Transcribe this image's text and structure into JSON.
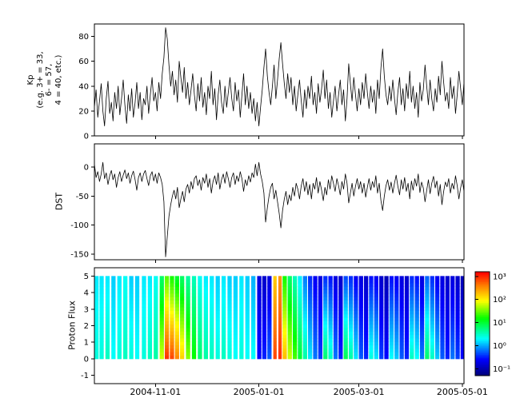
{
  "figure": {
    "background": "#ffffff",
    "axis_color": "#000000",
    "line_color": "#000000"
  },
  "x_axis": {
    "tick_labels": [
      "2004-11-01",
      "2005-01-01",
      "2005-03-01",
      "2005-05-01"
    ],
    "tick_days": [
      36,
      97,
      156,
      217
    ],
    "domain_days": [
      0,
      218
    ]
  },
  "chart_data": [
    {
      "type": "line",
      "panel": "kp",
      "ylabel_lines": [
        "Kp",
        "(e.g. 3+ = 33,",
        "6- = 57,",
        "4 = 40, etc.)"
      ],
      "ylim": [
        0,
        90
      ],
      "yticks": [
        0,
        20,
        40,
        60,
        80
      ],
      "values": [
        23,
        37,
        15,
        28,
        42,
        20,
        8,
        30,
        44,
        18,
        27,
        12,
        35,
        22,
        40,
        17,
        30,
        45,
        25,
        10,
        33,
        20,
        38,
        15,
        27,
        43,
        22,
        35,
        13,
        30,
        25,
        40,
        18,
        33,
        47,
        28,
        35,
        20,
        43,
        30,
        50,
        63,
        87,
        78,
        57,
        40,
        52,
        33,
        45,
        27,
        60,
        47,
        35,
        55,
        30,
        43,
        25,
        37,
        50,
        33,
        20,
        42,
        28,
        47,
        23,
        35,
        17,
        40,
        30,
        52,
        25,
        38,
        13,
        33,
        45,
        27,
        18,
        40,
        23,
        35,
        47,
        30,
        20,
        43,
        28,
        37,
        15,
        33,
        50,
        25,
        40,
        22,
        35,
        18,
        30,
        12,
        27,
        8,
        23,
        37,
        55,
        70,
        48,
        35,
        25,
        40,
        57,
        30,
        45,
        62,
        75,
        58,
        42,
        30,
        50,
        35,
        47,
        25,
        40,
        20,
        33,
        45,
        28,
        15,
        37,
        22,
        40,
        30,
        48,
        25,
        35,
        18,
        42,
        27,
        38,
        53,
        30,
        45,
        22,
        35,
        15,
        28,
        40,
        20,
        33,
        45,
        25,
        37,
        12,
        30,
        58,
        42,
        28,
        47,
        33,
        20,
        38,
        25,
        43,
        30,
        50,
        35,
        22,
        40,
        27,
        37,
        18,
        45,
        30,
        55,
        70,
        48,
        33,
        25,
        40,
        28,
        45,
        30,
        17,
        35,
        47,
        25,
        38,
        20,
        42,
        30,
        52,
        27,
        40,
        22,
        35,
        15,
        43,
        28,
        37,
        57,
        40,
        25,
        45,
        30,
        20,
        38,
        27,
        48,
        33,
        60,
        43,
        28,
        35,
        22,
        47,
        30,
        40,
        18,
        33,
        52,
        38,
        25,
        43
      ]
    },
    {
      "type": "line",
      "panel": "dst",
      "ylabel": "DST",
      "ylim": [
        -160,
        40
      ],
      "yticks": [
        0,
        -50,
        -100,
        -150
      ],
      "values": [
        5,
        -18,
        -8,
        -25,
        -12,
        8,
        -20,
        -10,
        -30,
        -15,
        -6,
        -22,
        -12,
        -35,
        -18,
        -8,
        -25,
        -14,
        -5,
        -20,
        -10,
        -28,
        -15,
        -7,
        -22,
        -40,
        -18,
        -10,
        -25,
        -12,
        -6,
        -20,
        -32,
        -15,
        -8,
        -24,
        -12,
        -28,
        -10,
        -18,
        -30,
        -60,
        -155,
        -120,
        -85,
        -65,
        -50,
        -40,
        -55,
        -35,
        -70,
        -55,
        -42,
        -60,
        -38,
        -30,
        -45,
        -25,
        -38,
        -20,
        -15,
        -32,
        -22,
        -40,
        -18,
        -28,
        -12,
        -35,
        -20,
        -45,
        -25,
        -15,
        -30,
        -10,
        -38,
        -22,
        -12,
        -28,
        -8,
        -20,
        -35,
        -18,
        -10,
        -30,
        -15,
        -25,
        -8,
        -20,
        -42,
        -22,
        -32,
        -15,
        -26,
        -10,
        -18,
        5,
        -15,
        8,
        -12,
        -25,
        -45,
        -95,
        -70,
        -50,
        -35,
        -28,
        -55,
        -40,
        -60,
        -80,
        -105,
        -75,
        -55,
        -42,
        -65,
        -48,
        -58,
        -35,
        -50,
        -28,
        -38,
        -55,
        -32,
        -20,
        -42,
        -25,
        -48,
        -30,
        -55,
        -28,
        -38,
        -18,
        -45,
        -25,
        -40,
        -58,
        -35,
        -48,
        -22,
        -38,
        -15,
        -28,
        -42,
        -20,
        -32,
        -48,
        -25,
        -38,
        -12,
        -28,
        -62,
        -45,
        -28,
        -50,
        -33,
        -20,
        -38,
        -25,
        -45,
        -28,
        -52,
        -35,
        -20,
        -40,
        -25,
        -35,
        -15,
        -45,
        -28,
        -58,
        -75,
        -50,
        -32,
        -22,
        -40,
        -26,
        -45,
        -28,
        -14,
        -33,
        -48,
        -22,
        -38,
        -18,
        -42,
        -28,
        -55,
        -24,
        -40,
        -20,
        -33,
        -12,
        -44,
        -26,
        -36,
        -60,
        -40,
        -22,
        -46,
        -28,
        -16,
        -36,
        -24,
        -50,
        -30,
        -65,
        -42,
        -26,
        -34,
        -20,
        -45,
        -28,
        -38,
        -15,
        -32,
        -55,
        -36,
        -22,
        -42
      ]
    },
    {
      "type": "heatmap",
      "panel": "proton-flux",
      "ylabel": "Proton Flux",
      "ylim": [
        -1.5,
        5.5
      ],
      "yticks": [
        5,
        4,
        3,
        2,
        1,
        0,
        -1
      ],
      "y_extent": [
        0,
        5
      ],
      "log_flux_range": [
        -1.3,
        3.2
      ],
      "stripes": [
        [
          0,
          2.5,
          0.4,
          0.2
        ],
        [
          3,
          5.5,
          0.4,
          0.2
        ],
        [
          6.5,
          9,
          0.5,
          0.2
        ],
        [
          10,
          12.5,
          0.3,
          0.1
        ],
        [
          13.5,
          16,
          0.4,
          0.2
        ],
        [
          17,
          19.5,
          0.5,
          0.3
        ],
        [
          20.5,
          23,
          0.4,
          0.1
        ],
        [
          24,
          26.5,
          0.3,
          0.1
        ],
        [
          28,
          30.5,
          0.4,
          0.2
        ],
        [
          31.5,
          34,
          0.5,
          0.2
        ],
        [
          35,
          37.5,
          0.6,
          0.3
        ],
        [
          38.5,
          41,
          1.8,
          0.8
        ],
        [
          41.5,
          44,
          3.0,
          1.4
        ],
        [
          44.5,
          47,
          2.9,
          1.2
        ],
        [
          47.5,
          50,
          2.6,
          1.0
        ],
        [
          50.5,
          53,
          2.2,
          0.8
        ],
        [
          54,
          56.5,
          1.6,
          0.6
        ],
        [
          57.5,
          60,
          1.2,
          0.5
        ],
        [
          61,
          63.5,
          0.8,
          0.3
        ],
        [
          64.5,
          67,
          0.6,
          0.2
        ],
        [
          68,
          70.5,
          0.5,
          0.2
        ],
        [
          71.5,
          74,
          0.4,
          0.1
        ],
        [
          75,
          77.5,
          0.5,
          0.2
        ],
        [
          78.5,
          81,
          0.4,
          0.1
        ],
        [
          82,
          84.5,
          0.3,
          0.1
        ],
        [
          85.5,
          88,
          0.4,
          0.2
        ],
        [
          89,
          91.5,
          0.3,
          0.1
        ],
        [
          92.5,
          95,
          0.3,
          0.0
        ],
        [
          96,
          98.5,
          -0.6,
          -0.8
        ],
        [
          99,
          101.5,
          -0.5,
          -0.9
        ],
        [
          102,
          104.5,
          -0.3,
          -0.8
        ],
        [
          105.5,
          107.5,
          2.9,
          2.2
        ],
        [
          108.5,
          110.5,
          3.0,
          2.5
        ],
        [
          111,
          113.5,
          2.3,
          1.2
        ],
        [
          114,
          116.5,
          1.8,
          0.8
        ],
        [
          117,
          119.5,
          1.4,
          0.5
        ],
        [
          120,
          122.5,
          1.0,
          0.2
        ],
        [
          123,
          125.5,
          0.6,
          -0.2
        ],
        [
          126,
          128.5,
          0.2,
          -0.5
        ],
        [
          129,
          131.5,
          -0.2,
          -0.7
        ],
        [
          132,
          134.5,
          -0.4,
          -0.8
        ],
        [
          135,
          137.5,
          0.8,
          -0.5
        ],
        [
          138,
          140.5,
          0.5,
          -0.6
        ],
        [
          141,
          143.5,
          -0.2,
          -0.8
        ],
        [
          144,
          146.5,
          -0.5,
          -0.9
        ],
        [
          147,
          149.5,
          0.9,
          -0.4
        ],
        [
          150,
          152.5,
          0.6,
          -0.5
        ],
        [
          153,
          155.5,
          0.2,
          -0.7
        ],
        [
          156,
          158.5,
          -0.3,
          -0.8
        ],
        [
          159,
          161.5,
          -0.5,
          -0.9
        ],
        [
          162,
          164.5,
          0.4,
          -0.6
        ],
        [
          165,
          167.5,
          0.2,
          -0.7
        ],
        [
          168,
          170.5,
          -0.4,
          -0.9
        ],
        [
          171,
          173.5,
          -0.6,
          -1.0
        ],
        [
          174,
          176.5,
          0.3,
          -0.6
        ],
        [
          177,
          179.5,
          0.1,
          -0.7
        ],
        [
          180,
          182.5,
          -0.3,
          -0.8
        ],
        [
          183,
          185.5,
          -0.5,
          -0.9
        ],
        [
          186,
          188.5,
          0.5,
          -0.5
        ],
        [
          189,
          191.5,
          0.3,
          -0.6
        ],
        [
          192,
          194.5,
          -0.2,
          -0.8
        ],
        [
          195,
          197.5,
          0.8,
          -0.3
        ],
        [
          198,
          200.5,
          0.5,
          -0.5
        ],
        [
          201,
          203.5,
          0.1,
          -0.7
        ],
        [
          204,
          206.5,
          -0.3,
          -0.8
        ],
        [
          207,
          209.5,
          -0.5,
          -0.9
        ],
        [
          210,
          212.5,
          -0.2,
          -0.8
        ],
        [
          213,
          215.5,
          -0.4,
          -0.9
        ],
        [
          216,
          218,
          -0.6,
          -1.0
        ]
      ],
      "colorbar": {
        "tick_labels": [
          "10³",
          "10²",
          "10¹",
          "10⁰",
          "10⁻¹"
        ],
        "tick_values": [
          3,
          2,
          1,
          0,
          -1
        ]
      }
    }
  ]
}
